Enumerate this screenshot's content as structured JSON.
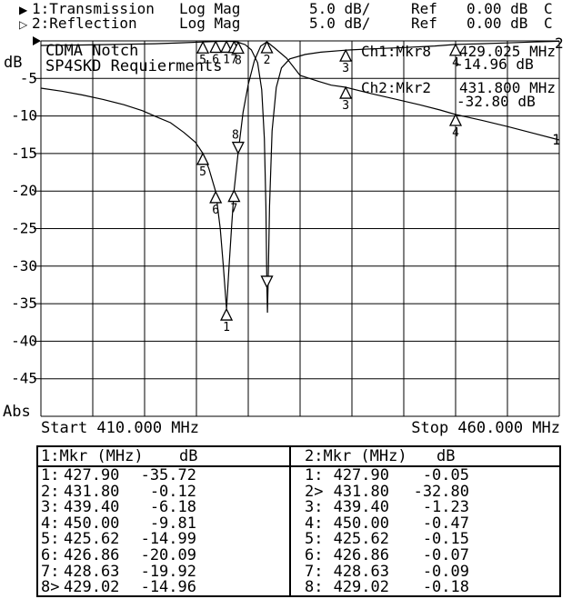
{
  "header": {
    "rows": [
      {
        "arrow": "▶",
        "trace": "1:Transmission",
        "format": "Log Mag",
        "scale": "5.0 dB/",
        "ref_label": "Ref",
        "ref_value": "0.00 dB",
        "cal": "C"
      },
      {
        "arrow": "▷",
        "trace": "2:Reflection",
        "format": "Log Mag",
        "scale": "5.0 dB/",
        "ref_label": "Ref",
        "ref_value": "0.00 dB",
        "cal": "C"
      }
    ]
  },
  "plot": {
    "title_line1": "CDMA Notch",
    "title_line2": "SP4SKD Requierments",
    "y_unit": "dB",
    "y_abs": "Abs",
    "start_label": "Start 410.000 MHz",
    "stop_label": "Stop 460.000 MHz",
    "trace1_label": "1",
    "trace2_label": "2",
    "readouts": {
      "ch1_label": "Ch1:Mkr8",
      "ch1_freq": "429.025 MHz",
      "ch1_level": "-14.96 dB",
      "ch2_label": "Ch2:Mkr2",
      "ch2_freq": "431.800 MHz",
      "ch2_level": "-32.80 dB"
    }
  },
  "chart_data": {
    "type": "line",
    "title": "CDMA Notch",
    "subtitle": "SP4SKD Requierments",
    "x_axis": {
      "start": 410.0,
      "stop": 460.0,
      "unit": "MHz",
      "divisions": 10,
      "start_label": "Start 410.000 MHz",
      "stop_label": "Stop 460.000 MHz"
    },
    "y_axis": {
      "ref_db": 0.0,
      "db_per_div": 5.0,
      "divisions": 10,
      "unit": "dB",
      "format": "Log Mag",
      "tick_labels": [
        "-5",
        "-10",
        "-15",
        "-20",
        "-25",
        "-30",
        "-35",
        "-40",
        "-45"
      ]
    },
    "series": [
      {
        "name": "Transmission",
        "channel": 1,
        "format": "Log Mag",
        "scale": "5.0 dB/",
        "ref": "0.00 dB",
        "points": [
          [
            410,
            -6.3
          ],
          [
            412,
            -6.7
          ],
          [
            414,
            -7.2
          ],
          [
            416,
            -7.8
          ],
          [
            418,
            -8.5
          ],
          [
            419.8,
            -9.3
          ],
          [
            421.3,
            -10.2
          ],
          [
            422.5,
            -10.9
          ],
          [
            423.8,
            -12.2
          ],
          [
            424.9,
            -13.5
          ],
          [
            425.62,
            -14.99
          ],
          [
            426.2,
            -17.0
          ],
          [
            426.86,
            -20.09
          ],
          [
            427.3,
            -25.0
          ],
          [
            427.6,
            -30.0
          ],
          [
            427.9,
            -35.72
          ],
          [
            428.15,
            -30.0
          ],
          [
            428.4,
            -24.5
          ],
          [
            428.63,
            -19.92
          ],
          [
            429.02,
            -14.96
          ],
          [
            429.5,
            -9.5
          ],
          [
            430.0,
            -5.8
          ],
          [
            430.6,
            -2.6
          ],
          [
            431.2,
            -0.7
          ],
          [
            431.8,
            -0.12
          ],
          [
            432.5,
            -0.9
          ],
          [
            433.7,
            -2.3
          ],
          [
            435.0,
            -4.6
          ],
          [
            436.8,
            -5.4
          ],
          [
            438.0,
            -5.9
          ],
          [
            439.4,
            -6.18
          ],
          [
            441.8,
            -7.0
          ],
          [
            444.0,
            -7.7
          ],
          [
            446.5,
            -8.5
          ],
          [
            448.5,
            -9.2
          ],
          [
            450.0,
            -9.81
          ],
          [
            452.6,
            -10.6
          ],
          [
            455.0,
            -11.4
          ],
          [
            457.5,
            -12.3
          ],
          [
            460.0,
            -13.2
          ]
        ]
      },
      {
        "name": "Reflection",
        "channel": 2,
        "format": "Log Mag",
        "scale": "5.0 dB/",
        "ref": "0.00 dB",
        "points": [
          [
            410,
            -0.6
          ],
          [
            414,
            -0.55
          ],
          [
            418,
            -0.45
          ],
          [
            421,
            -0.38
          ],
          [
            423.5,
            -0.25
          ],
          [
            425.62,
            -0.15
          ],
          [
            426.86,
            -0.07
          ],
          [
            427.9,
            -0.05
          ],
          [
            428.63,
            -0.09
          ],
          [
            429.02,
            -0.18
          ],
          [
            429.7,
            -0.5
          ],
          [
            430.3,
            -1.2
          ],
          [
            430.9,
            -2.9
          ],
          [
            431.3,
            -6.5
          ],
          [
            431.55,
            -13.0
          ],
          [
            431.7,
            -22.0
          ],
          [
            431.8,
            -32.8
          ],
          [
            431.85,
            -36.2
          ],
          [
            431.92,
            -32.0
          ],
          [
            432.05,
            -22.0
          ],
          [
            432.3,
            -12.0
          ],
          [
            432.7,
            -6.2
          ],
          [
            433.2,
            -3.6
          ],
          [
            434.0,
            -2.4
          ],
          [
            435.5,
            -1.8
          ],
          [
            437.0,
            -1.5
          ],
          [
            439.4,
            -1.23
          ],
          [
            442.0,
            -1.05
          ],
          [
            445.0,
            -0.88
          ],
          [
            448.0,
            -0.68
          ],
          [
            450.0,
            -0.47
          ],
          [
            452.5,
            -0.38
          ],
          [
            455.0,
            -0.27
          ],
          [
            457.5,
            -0.15
          ],
          [
            460.0,
            -0.05
          ]
        ]
      }
    ],
    "markers": [
      {
        "id": 1,
        "freq_mhz": 427.9,
        "ch1_db": -35.72,
        "ch2_db": -0.05
      },
      {
        "id": 2,
        "freq_mhz": 431.8,
        "ch1_db": -0.12,
        "ch2_db": -32.8
      },
      {
        "id": 3,
        "freq_mhz": 439.4,
        "ch1_db": -6.18,
        "ch2_db": -1.23
      },
      {
        "id": 4,
        "freq_mhz": 450.0,
        "ch1_db": -9.81,
        "ch2_db": -0.47
      },
      {
        "id": 5,
        "freq_mhz": 425.62,
        "ch1_db": -14.99,
        "ch2_db": -0.15
      },
      {
        "id": 6,
        "freq_mhz": 426.86,
        "ch1_db": -20.09,
        "ch2_db": -0.07
      },
      {
        "id": 7,
        "freq_mhz": 428.63,
        "ch1_db": -19.92,
        "ch2_db": -0.09
      },
      {
        "id": 8,
        "freq_mhz": 429.025,
        "ch1_db": -14.96,
        "ch2_db": -0.18
      }
    ],
    "active_markers": {
      "ch1": 8,
      "ch2": 2
    },
    "active_label_shown": {
      "ch1": true,
      "ch2": false
    },
    "legend_position": "none",
    "grid": true
  },
  "marker_tables": {
    "left": {
      "title": "1:Mkr (MHz)",
      "db_header": "dB",
      "rows": [
        {
          "n": "1:",
          "freq": "427.90",
          "db": "-35.72"
        },
        {
          "n": "2:",
          "freq": "431.80",
          "db": "-0.12"
        },
        {
          "n": "3:",
          "freq": "439.40",
          "db": "-6.18"
        },
        {
          "n": "4:",
          "freq": "450.00",
          "db": "-9.81"
        },
        {
          "n": "5:",
          "freq": "425.62",
          "db": "-14.99"
        },
        {
          "n": "6:",
          "freq": "426.86",
          "db": "-20.09"
        },
        {
          "n": "7:",
          "freq": "428.63",
          "db": "-19.92"
        },
        {
          "n": "8>",
          "freq": "429.02",
          "db": "-14.96"
        }
      ]
    },
    "right": {
      "title": "2:Mkr (MHz)",
      "db_header": "dB",
      "rows": [
        {
          "n": "1:",
          "freq": "427.90",
          "db": "-0.05"
        },
        {
          "n": "2>",
          "freq": "431.80",
          "db": "-32.80"
        },
        {
          "n": "3:",
          "freq": "439.40",
          "db": "-1.23"
        },
        {
          "n": "4:",
          "freq": "450.00",
          "db": "-0.47"
        },
        {
          "n": "5:",
          "freq": "425.62",
          "db": "-0.15"
        },
        {
          "n": "6:",
          "freq": "426.86",
          "db": "-0.07"
        },
        {
          "n": "7:",
          "freq": "428.63",
          "db": "-0.09"
        },
        {
          "n": "8:",
          "freq": "429.02",
          "db": "-0.18"
        }
      ]
    }
  }
}
